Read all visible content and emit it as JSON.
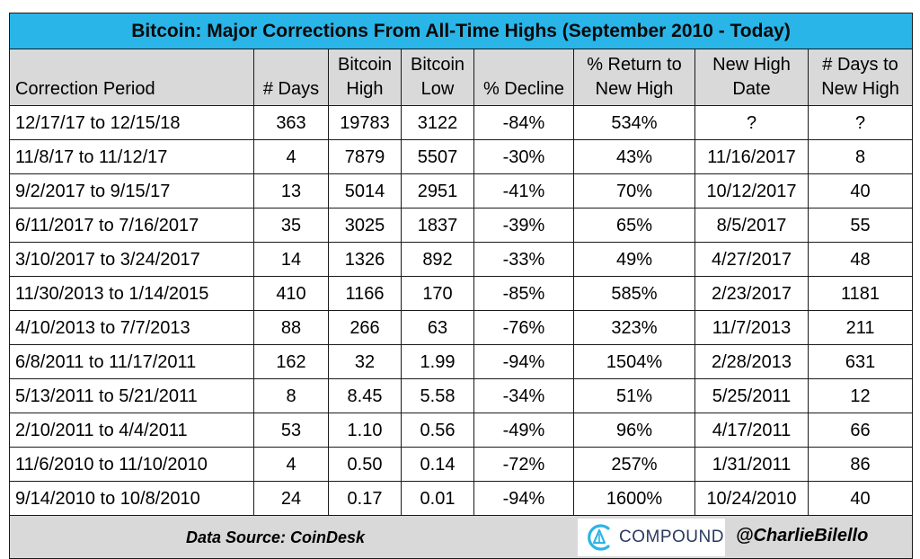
{
  "title": "Bitcoin: Major Corrections From All-Time Highs (September 2010 - Today)",
  "headers": {
    "period": "Correction Period",
    "days": "# Days",
    "high_1": "Bitcoin",
    "high_2": "High",
    "low_1": "Bitcoin",
    "low_2": "Low",
    "decline": "% Decline",
    "return_1": "% Return to",
    "return_2": "New High",
    "newhigh_1": "New High",
    "newhigh_2": "Date",
    "daysto_1": "# Days to",
    "daysto_2": "New High"
  },
  "rows": [
    {
      "period": "12/17/17 to 12/15/18",
      "days": "363",
      "high": "19783",
      "low": "3122",
      "decline": "-84%",
      "ret": "534%",
      "date": "?",
      "daysto": "?"
    },
    {
      "period": "11/8/17 to 11/12/17",
      "days": "4",
      "high": "7879",
      "low": "5507",
      "decline": "-30%",
      "ret": "43%",
      "date": "11/16/2017",
      "daysto": "8"
    },
    {
      "period": "9/2/2017 to 9/15/17",
      "days": "13",
      "high": "5014",
      "low": "2951",
      "decline": "-41%",
      "ret": "70%",
      "date": "10/12/2017",
      "daysto": "40"
    },
    {
      "period": "6/11/2017 to 7/16/2017",
      "days": "35",
      "high": "3025",
      "low": "1837",
      "decline": "-39%",
      "ret": "65%",
      "date": "8/5/2017",
      "daysto": "55"
    },
    {
      "period": "3/10/2017 to 3/24/2017",
      "days": "14",
      "high": "1326",
      "low": "892",
      "decline": "-33%",
      "ret": "49%",
      "date": "4/27/2017",
      "daysto": "48"
    },
    {
      "period": "11/30/2013 to 1/14/2015",
      "days": "410",
      "high": "1166",
      "low": "170",
      "decline": "-85%",
      "ret": "585%",
      "date": "2/23/2017",
      "daysto": "1181"
    },
    {
      "period": "4/10/2013 to 7/7/2013",
      "days": "88",
      "high": "266",
      "low": "63",
      "decline": "-76%",
      "ret": "323%",
      "date": "11/7/2013",
      "daysto": "211"
    },
    {
      "period": "6/8/2011 to 11/17/2011",
      "days": "162",
      "high": "32",
      "low": "1.99",
      "decline": "-94%",
      "ret": "1504%",
      "date": "2/28/2013",
      "daysto": "631"
    },
    {
      "period": "5/13/2011 to 5/21/2011",
      "days": "8",
      "high": "8.45",
      "low": "5.58",
      "decline": "-34%",
      "ret": "51%",
      "date": "5/25/2011",
      "daysto": "12"
    },
    {
      "period": "2/10/2011 to 4/4/2011",
      "days": "53",
      "high": "1.10",
      "low": "0.56",
      "decline": "-49%",
      "ret": "96%",
      "date": "4/17/2011",
      "daysto": "66"
    },
    {
      "period": "11/6/2010 to 11/10/2010",
      "days": "4",
      "high": "0.50",
      "low": "0.14",
      "decline": "-72%",
      "ret": "257%",
      "date": "1/31/2011",
      "daysto": "86"
    },
    {
      "period": "9/14/2010 to 10/8/2010",
      "days": "24",
      "high": "0.17",
      "low": "0.01",
      "decline": "-94%",
      "ret": "1600%",
      "date": "10/24/2010",
      "daysto": "40"
    }
  ],
  "footer": {
    "source": "Data Source: CoinDesk",
    "logo_text": "COMPOUND",
    "logo_icon": "compound-c-icon",
    "handle": "@CharlieBilello"
  },
  "colors": {
    "title_bg": "#29b5e8",
    "header_bg": "#d9d9d9",
    "logo_accent": "#2bb5e6"
  }
}
